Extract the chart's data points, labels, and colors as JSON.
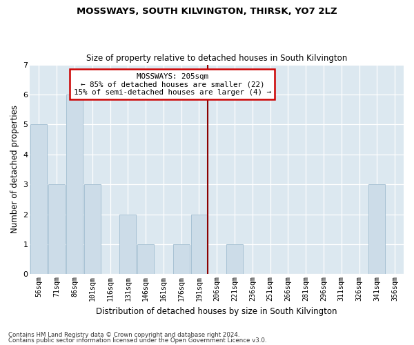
{
  "title": "MOSSWAYS, SOUTH KILVINGTON, THIRSK, YO7 2LZ",
  "subtitle": "Size of property relative to detached houses in South Kilvington",
  "xlabel": "Distribution of detached houses by size in South Kilvington",
  "ylabel": "Number of detached properties",
  "categories": [
    "56sqm",
    "71sqm",
    "86sqm",
    "101sqm",
    "116sqm",
    "131sqm",
    "146sqm",
    "161sqm",
    "176sqm",
    "191sqm",
    "206sqm",
    "221sqm",
    "236sqm",
    "251sqm",
    "266sqm",
    "281sqm",
    "296sqm",
    "311sqm",
    "326sqm",
    "341sqm",
    "356sqm"
  ],
  "values": [
    5,
    3,
    6,
    3,
    0,
    2,
    1,
    0,
    1,
    2,
    0,
    1,
    0,
    0,
    0,
    0,
    0,
    0,
    0,
    3,
    0
  ],
  "bar_color": "#ccdce8",
  "bar_edgecolor": "#a0bcd0",
  "vline_index": 10,
  "vline_color": "#8b0000",
  "annotation_line1": "MOSSWAYS: 205sqm",
  "annotation_line2": "← 85% of detached houses are smaller (22)",
  "annotation_line3": "15% of semi-detached houses are larger (4) →",
  "annotation_box_edgecolor": "#cc0000",
  "ylim": [
    0,
    7
  ],
  "yticks": [
    0,
    1,
    2,
    3,
    4,
    5,
    6,
    7
  ],
  "footnote1": "Contains HM Land Registry data © Crown copyright and database right 2024.",
  "footnote2": "Contains public sector information licensed under the Open Government Licence v3.0.",
  "fig_bg_color": "#ffffff",
  "plot_bg_color": "#dce8f0"
}
